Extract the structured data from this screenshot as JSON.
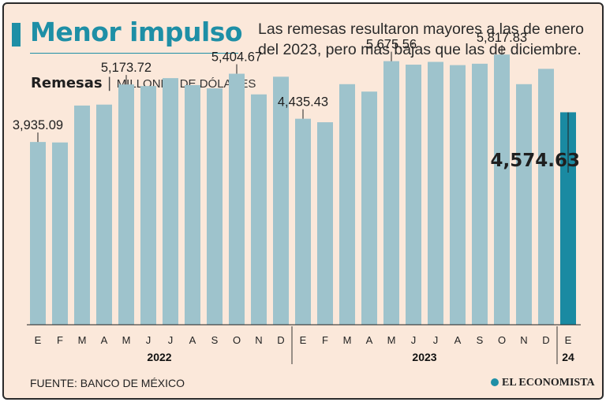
{
  "header": {
    "headline": "Menor impulso",
    "subtitle": "Las remesas resultaron mayores a las de enero del 2023, pero más bajas que las de diciembre."
  },
  "chart_title": {
    "main": "Remesas",
    "separator": "|",
    "unit": "MILLONES DE DÓLARES"
  },
  "chart_data": {
    "type": "bar",
    "title": "Remesas",
    "ylabel": "Millones de dólares",
    "ylim": [
      0,
      6500
    ],
    "categories": [
      "E",
      "F",
      "M",
      "A",
      "M",
      "J",
      "J",
      "A",
      "S",
      "O",
      "N",
      "D",
      "E",
      "F",
      "M",
      "A",
      "M",
      "J",
      "J",
      "A",
      "S",
      "O",
      "N",
      "D",
      "E"
    ],
    "values": [
      3935.09,
      3925,
      4720,
      4740,
      5173.72,
      5140,
      5310,
      5160,
      5090,
      5404.67,
      4960,
      5340,
      4435.43,
      4360,
      5180,
      5020,
      5675.56,
      5600,
      5660,
      5590,
      5620,
      5817.83,
      5180,
      5510,
      4574.63
    ],
    "years": [
      {
        "label": "2022",
        "start": 0,
        "end": 11
      },
      {
        "label": "2023",
        "start": 12,
        "end": 23
      },
      {
        "label": "24",
        "start": 24,
        "end": 24
      }
    ],
    "annotations": [
      {
        "index": 0,
        "text": "3,935.09"
      },
      {
        "index": 4,
        "text": "5,173.72"
      },
      {
        "index": 9,
        "text": "5,404.67"
      },
      {
        "index": 12,
        "text": "4,435.43"
      },
      {
        "index": 16,
        "text": "5,675.56"
      },
      {
        "index": 21,
        "text": "5,817.83"
      },
      {
        "index": 24,
        "text": "4,574.63",
        "highlight": true
      }
    ],
    "colors": {
      "bar": "#9ec3cc",
      "highlight": "#1a8aa2",
      "label": "#1f1f1f"
    }
  },
  "footer": {
    "source": "FUENTE: BANCO DE MÉXICO",
    "brand": "EL ECONOMISTA"
  }
}
